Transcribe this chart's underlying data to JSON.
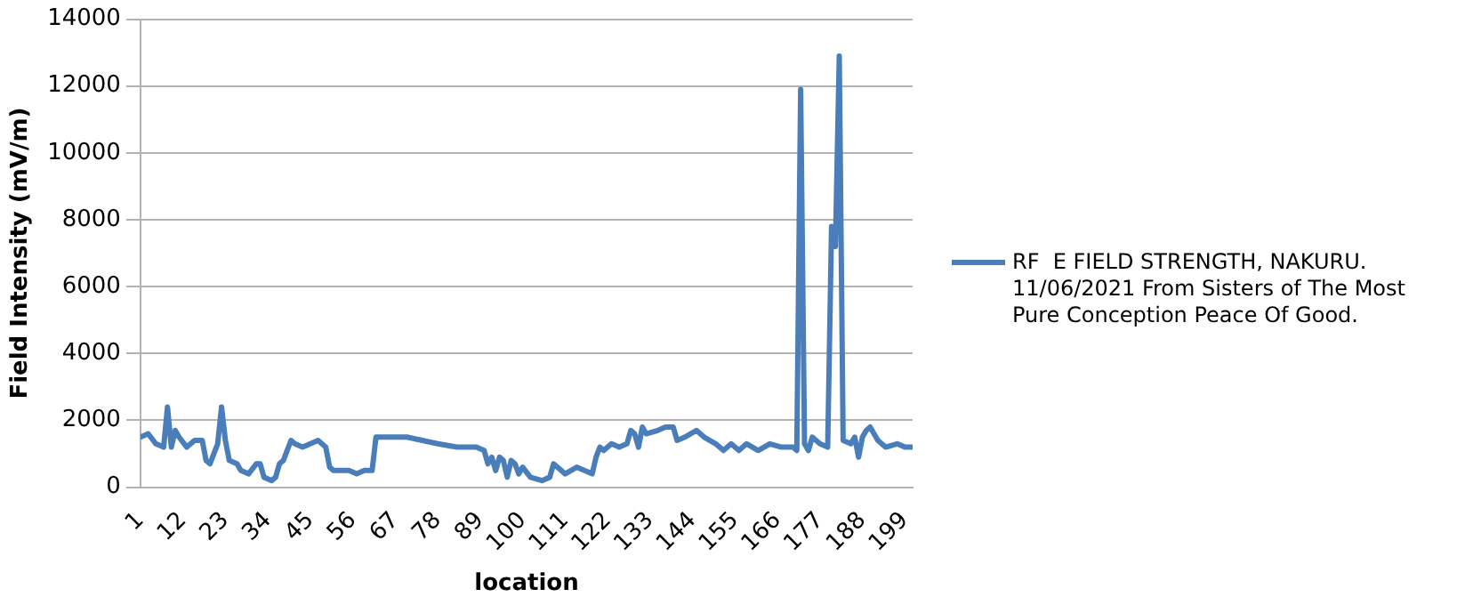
{
  "chart_data": {
    "type": "line",
    "xlabel": "location",
    "ylabel": "Field Intensity (mV/m)",
    "xlim": [
      1,
      201
    ],
    "xticks": [
      1,
      12,
      23,
      34,
      45,
      56,
      67,
      78,
      89,
      100,
      111,
      122,
      133,
      144,
      155,
      166,
      177,
      188,
      199
    ],
    "ylim": [
      0,
      14000
    ],
    "yticks": [
      0,
      2000,
      4000,
      6000,
      8000,
      10000,
      12000,
      14000
    ],
    "grid": "y",
    "legend": "right",
    "marker": "none",
    "line_style": "solid",
    "series": [
      {
        "name": "RF  E FIELD STRENGTH, NAKURU. 11/06/2021 From Sisters of The Most Pure Conception Peace Of Good.",
        "color": "#4a7ebb",
        "x": [
          1,
          3,
          5,
          7,
          8,
          9,
          10,
          11,
          13,
          15,
          17,
          18,
          19,
          21,
          22,
          23,
          24,
          26,
          27,
          29,
          31,
          32,
          33,
          35,
          36,
          37,
          38,
          40,
          41,
          43,
          45,
          47,
          49,
          50,
          51,
          53,
          55,
          57,
          59,
          61,
          62,
          65,
          70,
          74,
          78,
          83,
          88,
          90,
          91,
          92,
          93,
          94,
          95,
          96,
          97,
          98,
          99,
          100,
          102,
          105,
          107,
          108,
          109,
          111,
          114,
          116,
          118,
          119,
          120,
          121,
          123,
          125,
          127,
          128,
          129,
          130,
          131,
          132,
          135,
          137,
          139,
          140,
          142,
          145,
          147,
          150,
          152,
          154,
          156,
          158,
          161,
          164,
          167,
          170,
          171,
          172,
          173,
          174,
          175,
          176,
          177,
          179,
          180,
          181,
          182,
          183,
          185,
          186,
          187,
          188,
          189,
          190,
          192,
          193,
          194,
          197,
          199,
          201
        ],
        "values": [
          1500,
          1600,
          1300,
          1200,
          2400,
          1200,
          1700,
          1500,
          1200,
          1400,
          1400,
          800,
          700,
          1300,
          2400,
          1400,
          800,
          700,
          500,
          400,
          700,
          700,
          300,
          200,
          300,
          700,
          800,
          1400,
          1300,
          1200,
          1300,
          1400,
          1200,
          600,
          500,
          500,
          500,
          400,
          500,
          500,
          1500,
          1500,
          1500,
          1400,
          1300,
          1200,
          1200,
          1100,
          700,
          900,
          500,
          900,
          800,
          300,
          800,
          700,
          400,
          600,
          300,
          200,
          300,
          700,
          600,
          400,
          600,
          500,
          400,
          900,
          1200,
          1100,
          1300,
          1200,
          1300,
          1700,
          1600,
          1200,
          1800,
          1600,
          1700,
          1800,
          1800,
          1400,
          1500,
          1700,
          1500,
          1300,
          1100,
          1300,
          1100,
          1300,
          1100,
          1300,
          1200,
          1200,
          1100,
          11900,
          1300,
          1100,
          1500,
          1400,
          1300,
          1200,
          7800,
          7200,
          12900,
          1400,
          1300,
          1500,
          900,
          1500,
          1700,
          1800,
          1400,
          1300,
          1200,
          1300,
          1200,
          1200
        ]
      }
    ]
  }
}
